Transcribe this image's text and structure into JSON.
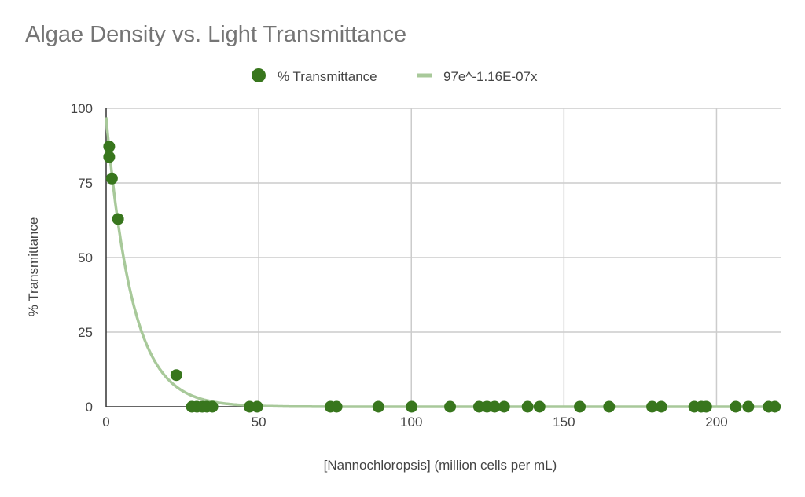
{
  "chart_data": {
    "type": "scatter",
    "title": "Algae Density vs. Light Transmittance",
    "xlabel": "[Nannochloropsis] (million cells per mL)",
    "ylabel": "% Transmittance",
    "xlim": [
      0,
      221
    ],
    "ylim": [
      0,
      100
    ],
    "xticks": [
      0,
      50,
      100,
      150,
      200
    ],
    "yticks": [
      0,
      25,
      50,
      75,
      100
    ],
    "grid": true,
    "legend_position": "top",
    "series": [
      {
        "name": "% Transmittance",
        "color": "#38761d",
        "points": [
          [
            1.0,
            87.2
          ],
          [
            1.0,
            83.7
          ],
          [
            1.9,
            76.5
          ],
          [
            3.9,
            62.9
          ],
          [
            23.0,
            10.6
          ],
          [
            28.1,
            0
          ],
          [
            29.7,
            0
          ],
          [
            31.5,
            0
          ],
          [
            33.0,
            0
          ],
          [
            34.8,
            0
          ],
          [
            47.0,
            0
          ],
          [
            49.5,
            0
          ],
          [
            73.5,
            0
          ],
          [
            75.5,
            0
          ],
          [
            89.2,
            0
          ],
          [
            100.1,
            0
          ],
          [
            112.7,
            0
          ],
          [
            122.2,
            0
          ],
          [
            124.8,
            0
          ],
          [
            127.3,
            0
          ],
          [
            130.4,
            0
          ],
          [
            138.1,
            0
          ],
          [
            142.0,
            0
          ],
          [
            155.2,
            0
          ],
          [
            164.8,
            0
          ],
          [
            178.9,
            0
          ],
          [
            181.9,
            0
          ],
          [
            192.7,
            0
          ],
          [
            195.0,
            0
          ],
          [
            196.6,
            0
          ],
          [
            206.3,
            0
          ],
          [
            210.4,
            0
          ],
          [
            217.1,
            0
          ],
          [
            219.1,
            0
          ]
        ]
      }
    ],
    "trendline": {
      "name": "97e^-1.16E-07x",
      "type": "exponential",
      "a": 97,
      "b": -0.116,
      "color": "#a8c99a"
    }
  }
}
